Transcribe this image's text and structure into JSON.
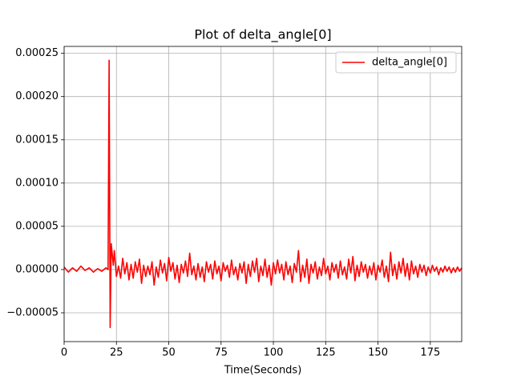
{
  "chart_data": {
    "type": "line",
    "title": "Plot of delta_angle[0]",
    "x_label": "Time(Seconds)",
    "x": [
      0,
      2,
      4,
      6,
      8,
      10,
      12,
      14,
      16,
      18,
      20,
      21,
      21.5,
      22,
      22.5,
      23.5,
      24,
      25,
      26,
      27,
      28,
      29,
      30,
      31,
      32,
      33,
      34,
      35,
      36,
      37,
      38,
      39,
      40,
      41,
      42,
      43,
      44,
      45,
      46,
      47,
      48,
      49,
      50,
      51,
      52,
      53,
      54,
      55,
      56,
      57,
      58,
      59,
      60,
      61,
      62,
      63,
      64,
      65,
      66,
      67,
      68,
      69,
      70,
      71,
      72,
      73,
      74,
      75,
      76,
      77,
      78,
      79,
      80,
      81,
      82,
      83,
      84,
      85,
      86,
      87,
      88,
      89,
      90,
      91,
      92,
      93,
      94,
      95,
      96,
      97,
      98,
      99,
      100,
      101,
      102,
      103,
      104,
      105,
      106,
      107,
      108,
      109,
      110,
      111,
      112,
      113,
      114,
      115,
      116,
      117,
      118,
      119,
      120,
      121,
      122,
      123,
      124,
      125,
      126,
      127,
      128,
      129,
      130,
      131,
      132,
      133,
      134,
      135,
      136,
      137,
      138,
      139,
      140,
      141,
      142,
      143,
      144,
      145,
      146,
      147,
      148,
      149,
      150,
      151,
      152,
      153,
      154,
      155,
      156,
      157,
      158,
      159,
      160,
      161,
      162,
      163,
      164,
      165,
      166,
      167,
      168,
      169,
      170,
      171,
      172,
      173,
      174,
      175,
      176,
      177,
      178,
      179,
      180,
      181,
      182,
      183,
      184,
      185,
      186,
      187,
      188,
      189,
      190
    ],
    "series": [
      {
        "name": "delta_angle[0]",
        "color": "#ff0000",
        "values": [
          3e-06,
          -3e-06,
          2e-06,
          -2e-06,
          4e-06,
          -1e-06,
          2e-06,
          -3e-06,
          1e-06,
          -2e-06,
          2e-06,
          0.0,
          0.000242,
          -6.7e-05,
          3e-05,
          5e-06,
          2.2e-05,
          -8e-06,
          4e-06,
          -1e-05,
          1.3e-05,
          -5e-06,
          8e-06,
          -1.2e-05,
          6e-06,
          -1e-05,
          9e-06,
          -3e-06,
          1.2e-05,
          -1.6e-05,
          5e-06,
          -8e-06,
          4e-06,
          -6e-06,
          9e-06,
          -1.8e-05,
          3e-06,
          -9e-06,
          1.1e-05,
          -4e-06,
          7e-06,
          -1.3e-05,
          1.4e-05,
          -2e-06,
          8e-06,
          -1.1e-05,
          5e-06,
          -1.5e-05,
          6e-06,
          -4e-06,
          1e-05,
          -8e-06,
          1.9e-05,
          -6e-06,
          4e-06,
          -1.2e-05,
          7e-06,
          -9e-06,
          3e-06,
          -1.4e-05,
          9e-06,
          -3e-06,
          6e-06,
          -1.1e-05,
          1e-05,
          -5e-06,
          4e-06,
          -1.3e-05,
          8e-06,
          -2e-06,
          5e-06,
          -9e-06,
          1.1e-05,
          -6e-06,
          3e-06,
          -1.2e-05,
          7e-06,
          -4e-06,
          9e-06,
          -1.6e-05,
          6e-06,
          -8e-06,
          1e-05,
          -3e-06,
          1.3e-05,
          -1.4e-05,
          4e-06,
          -7e-06,
          1.2e-05,
          -9e-06,
          5e-06,
          -1.8e-05,
          8e-06,
          -5e-06,
          1.1e-05,
          -4e-06,
          6e-06,
          -1.2e-05,
          9e-06,
          -6e-06,
          4e-06,
          -1.5e-05,
          7e-06,
          -3e-06,
          2.2e-05,
          -1.4e-05,
          5e-06,
          -9e-06,
          1.2e-05,
          -1.6e-05,
          6e-06,
          -4e-06,
          9e-06,
          -1.1e-05,
          3e-06,
          -7e-06,
          1.3e-05,
          -5e-06,
          4e-06,
          -1.2e-05,
          8e-06,
          -3e-06,
          6e-06,
          -1e-05,
          1e-05,
          -6e-06,
          3e-06,
          -1.1e-05,
          1.2e-05,
          -4e-06,
          1.5e-05,
          -1.3e-05,
          5e-06,
          -8e-06,
          9e-06,
          -3e-06,
          6e-06,
          -1e-05,
          4e-06,
          -6e-06,
          8e-06,
          -1.2e-05,
          5e-06,
          -3e-06,
          1.1e-05,
          -9e-06,
          4e-06,
          -1.4e-05,
          2e-05,
          -7e-06,
          6e-06,
          -1.1e-05,
          9e-06,
          -4e-06,
          1.3e-05,
          -8e-06,
          7e-06,
          -1.2e-05,
          1e-05,
          -5e-06,
          4e-06,
          -9e-06,
          6e-06,
          -3e-06,
          5e-06,
          -7e-06,
          3e-06,
          -4e-06,
          5e-06,
          -2e-06,
          3e-06,
          -6e-06,
          2e-06,
          -3e-06,
          4e-06,
          -2e-06,
          3e-06,
          -4e-06,
          2e-06,
          -3e-06,
          3e-06,
          -2e-06,
          2e-06
        ]
      }
    ],
    "xlim": [
      0,
      190
    ],
    "xticks": [
      0,
      25,
      50,
      75,
      100,
      125,
      150,
      175
    ],
    "ylim": [
      -8.33e-05,
      0.000258
    ],
    "yticks": [
      {
        "value": -5e-05,
        "label": "−0.00005"
      },
      {
        "value": 0,
        "label": "0.00000"
      },
      {
        "value": 5e-05,
        "label": "0.00005"
      },
      {
        "value": 0.0001,
        "label": "0.00010"
      },
      {
        "value": 0.00015,
        "label": "0.00015"
      },
      {
        "value": 0.0002,
        "label": "0.00020"
      },
      {
        "value": 0.00025,
        "label": "0.00025"
      }
    ],
    "grid": true,
    "legend": "upper right"
  }
}
